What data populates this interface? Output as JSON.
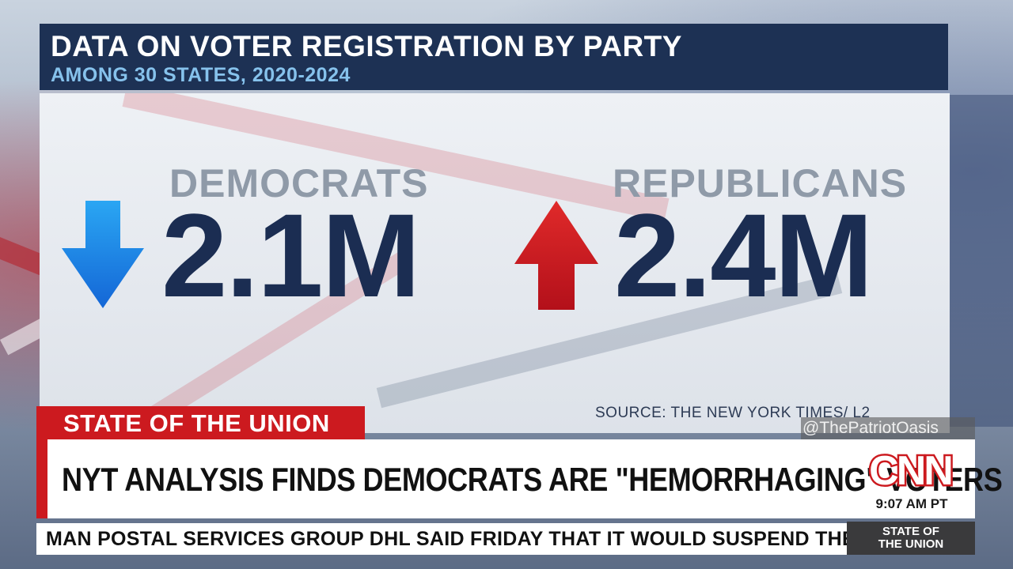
{
  "graphic": {
    "title": "DATA ON VOTER REGISTRATION BY PARTY",
    "subtitle": "AMONG 30 STATES, 2020-2024",
    "left": {
      "party": "DEMOCRATS",
      "value": "2.1M",
      "direction": "down",
      "arrow_color": "#1f87e6"
    },
    "right": {
      "party": "REPUBLICANS",
      "value": "2.4M",
      "direction": "up",
      "arrow_color": "#cc1a1f"
    },
    "source": "SOURCE: THE NEW YORK TIMES/ L2"
  },
  "lower_third": {
    "show_tab": "STATE OF THE UNION",
    "headline": "NYT ANALYSIS FINDS DEMOCRATS ARE \"HEMORRHAGING\" VOTERS",
    "network_logo": "CNN",
    "time": "9:07 AM PT",
    "ticker": "MAN POSTAL SERVICES GROUP DHL SAID FRIDAY THAT IT WOULD SUSPEND THE SHIPM",
    "ticker_tag_line1": "STATE OF",
    "ticker_tag_line2": "THE UNION"
  },
  "watermark": "@ThePatriotOasis",
  "colors": {
    "header_bg": "#1d3154",
    "subtitle": "#86c2ec",
    "value_text": "#1b2d52",
    "brand_red": "#cc1a1f"
  }
}
